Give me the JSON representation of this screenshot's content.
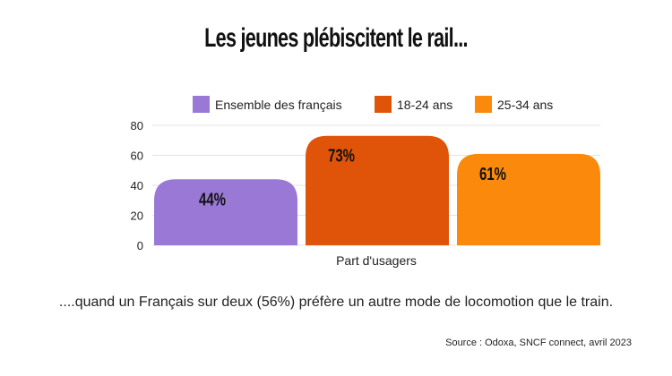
{
  "chart_data": {
    "type": "bar",
    "title": "Les jeunes plébiscitent le rail...",
    "categories": [
      "Part d'usagers"
    ],
    "series": [
      {
        "name": "Ensemble des français",
        "values": [
          44
        ],
        "label": "44%",
        "color": "#9a78d6"
      },
      {
        "name": "18-24 ans",
        "values": [
          73
        ],
        "label": "73%",
        "color": "#e0540a"
      },
      {
        "name": "25-34 ans",
        "values": [
          61
        ],
        "label": "61%",
        "color": "#fb8a0c"
      }
    ],
    "ylim": [
      0,
      80
    ],
    "yticks": [
      "0",
      "20",
      "40",
      "60",
      "80"
    ],
    "grid": true,
    "legend_position": "top"
  },
  "subtitle": "....quand un Français sur deux (56%) préfère un autre mode de locomotion que le train.",
  "source": "Source : Odoxa, SNCF connect, avril 2023"
}
